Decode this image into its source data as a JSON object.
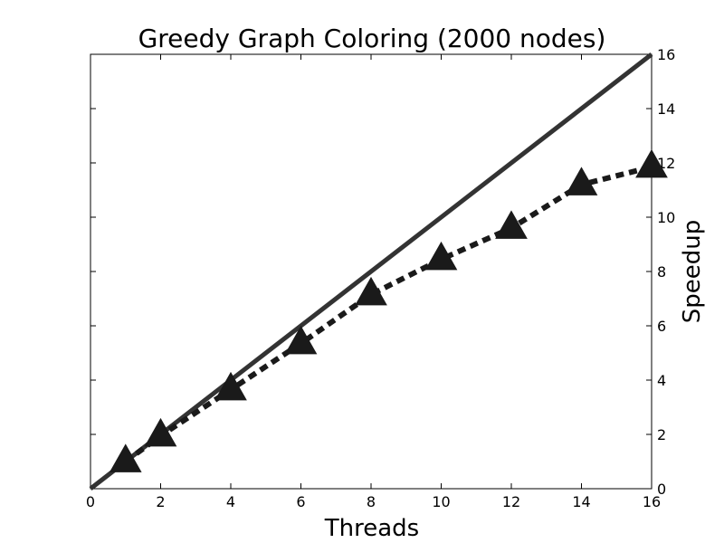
{
  "chart_data": {
    "type": "line",
    "title": "Greedy Graph Coloring (2000 nodes)",
    "xlabel": "Threads",
    "ylabel": "Speedup",
    "xlim": [
      0,
      16
    ],
    "ylim": [
      0,
      16
    ],
    "x_ticks": [
      "0",
      "2",
      "4",
      "6",
      "8",
      "10",
      "12",
      "14",
      "16"
    ],
    "y_ticks": [
      "0",
      "2",
      "4",
      "6",
      "8",
      "10",
      "12",
      "14",
      "16"
    ],
    "y_axis_side": "right",
    "grid": false,
    "legend": "none",
    "series": [
      {
        "style": "solid",
        "marker": "none",
        "color": "#333333",
        "x": [
          0,
          16
        ],
        "y": [
          0,
          16
        ]
      },
      {
        "style": "dashed",
        "marker": "triangle",
        "color": "#1a1a1a",
        "x": [
          1,
          2,
          4,
          6,
          8,
          10,
          12,
          14,
          16
        ],
        "y": [
          1.0,
          1.95,
          3.65,
          5.35,
          7.15,
          8.45,
          9.6,
          11.2,
          11.85
        ]
      }
    ]
  }
}
